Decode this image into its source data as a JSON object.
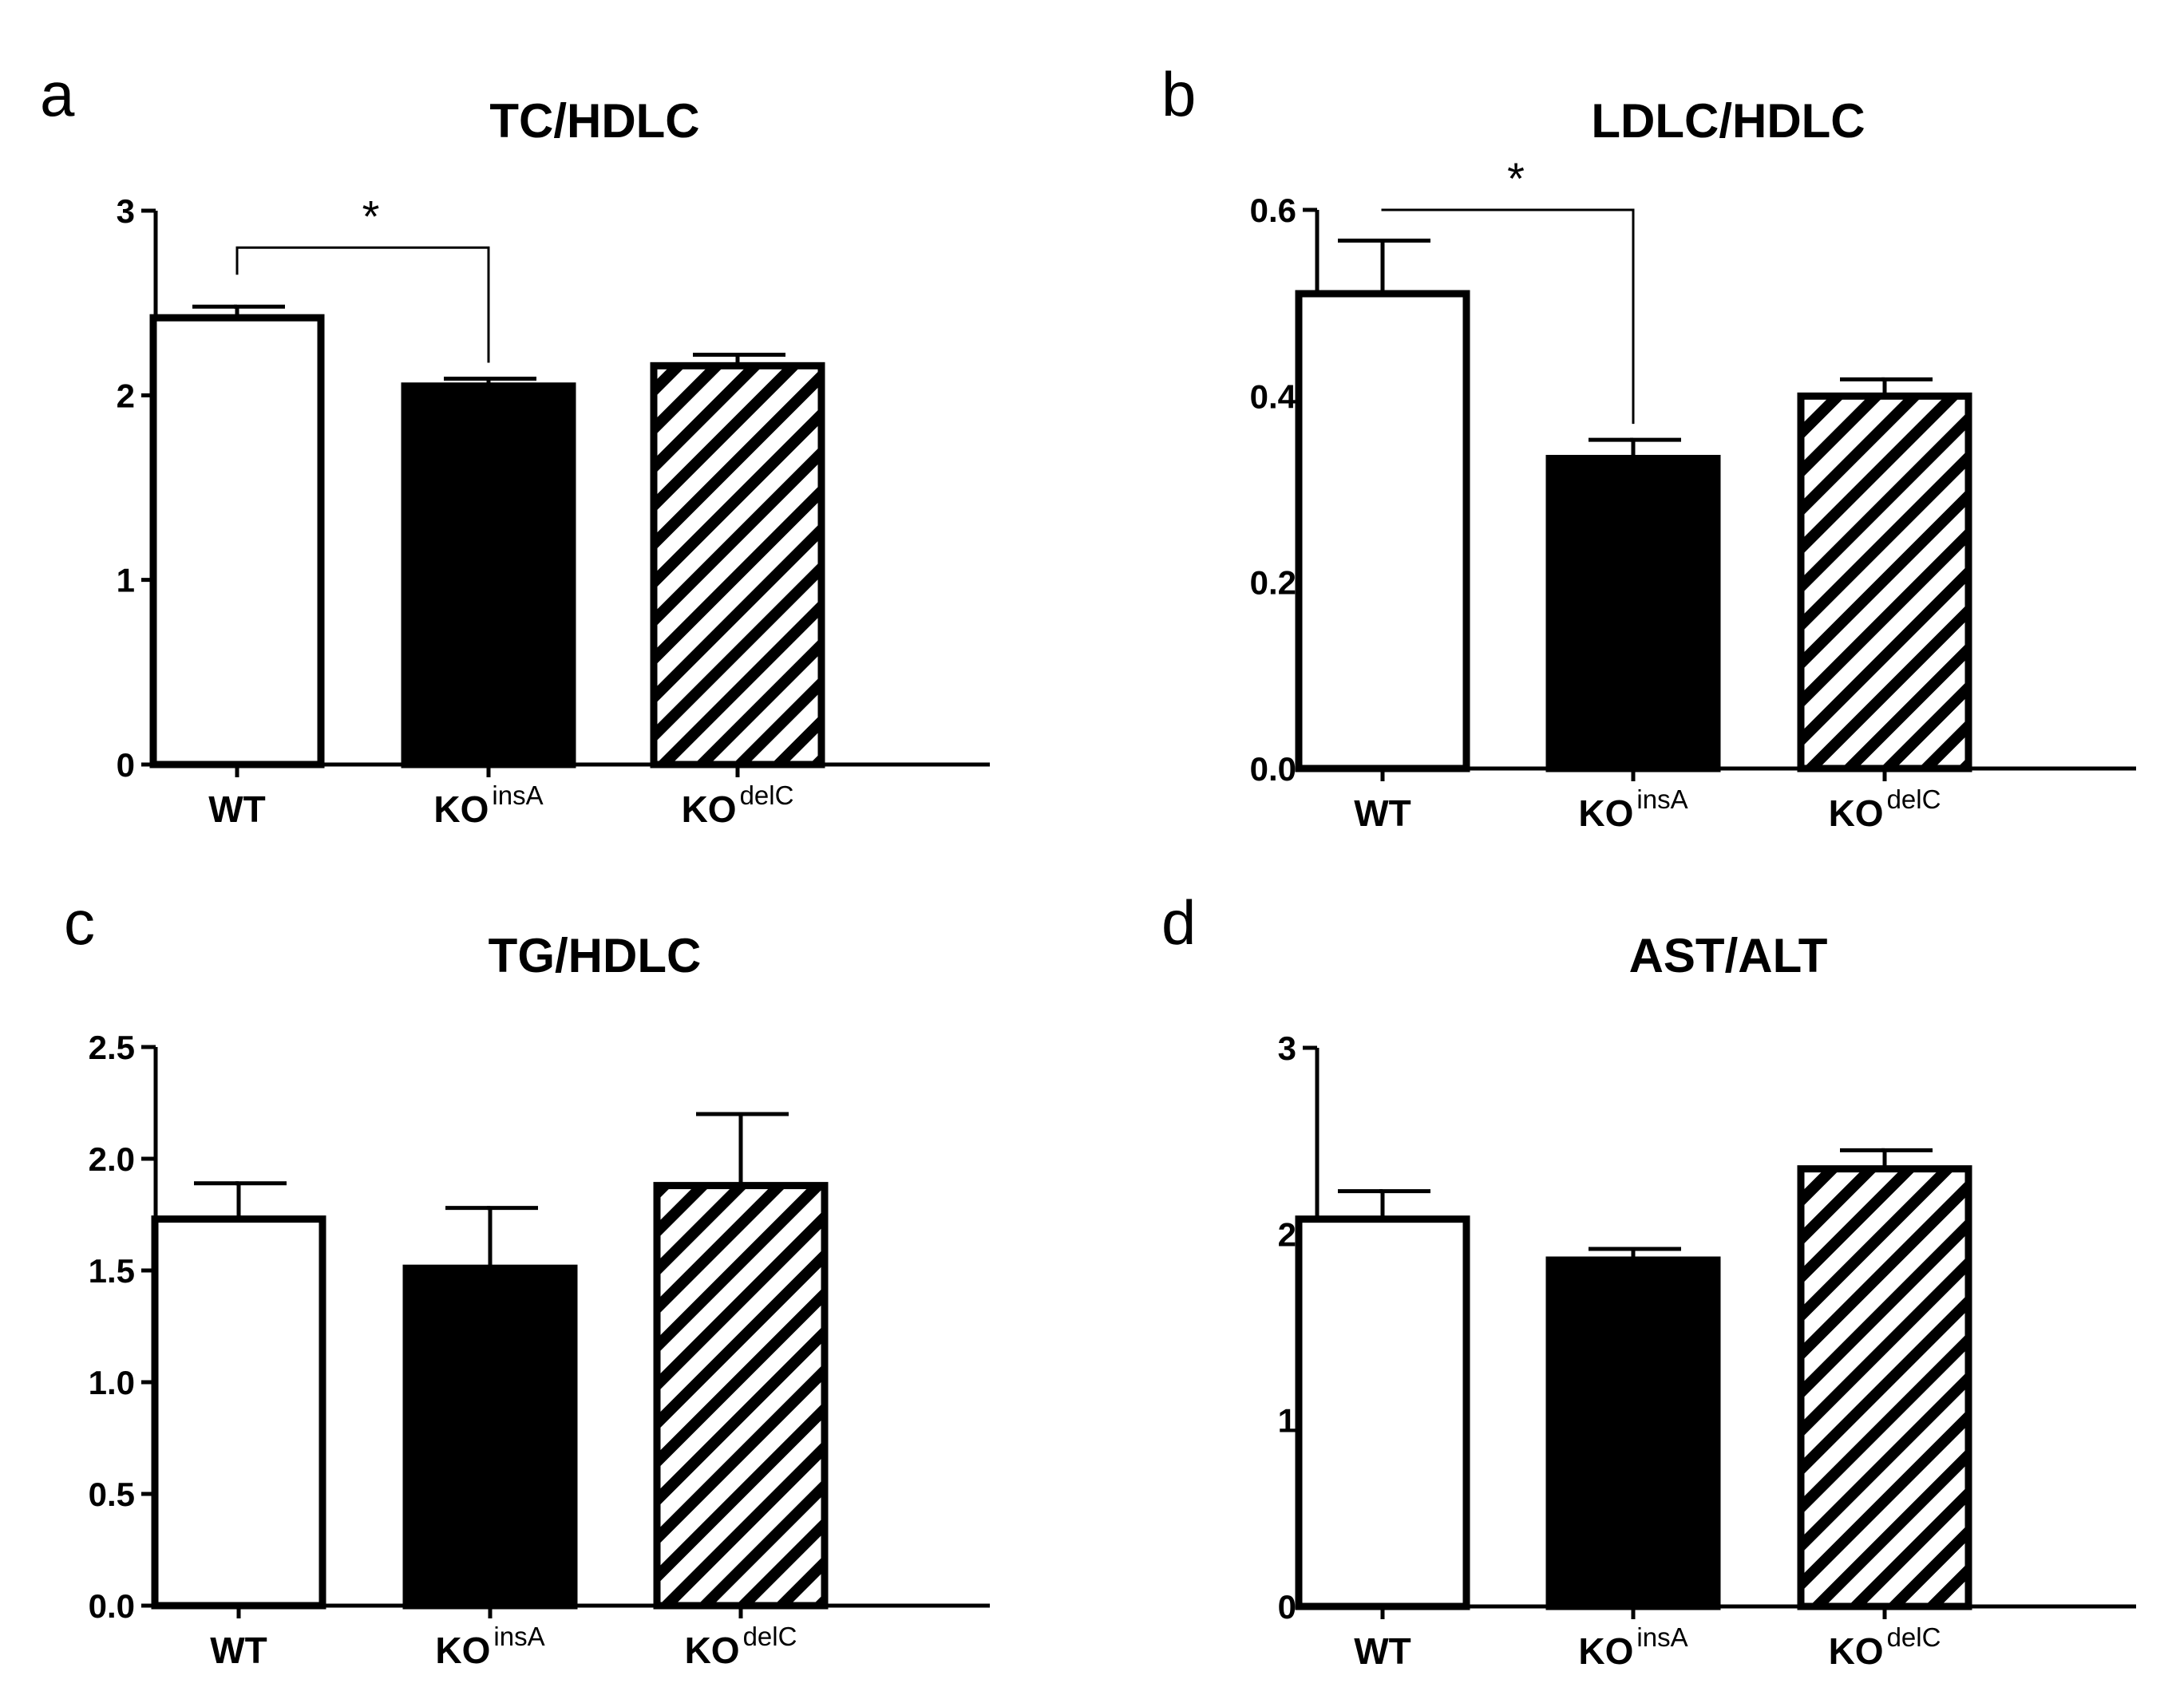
{
  "chart_data": [
    {
      "panel": "a",
      "type": "bar",
      "title": "TC/HDLC",
      "categories": [
        {
          "base": "WT",
          "sup": ""
        },
        {
          "base": "KO",
          "sup": "insA"
        },
        {
          "base": "KO",
          "sup": "delC"
        }
      ],
      "values": [
        2.42,
        2.05,
        2.16
      ],
      "errors": [
        0.06,
        0.04,
        0.06
      ],
      "fills": [
        "open",
        "solid",
        "hatched"
      ],
      "ylim": [
        0,
        3
      ],
      "yticks": [
        "0",
        "1",
        "2",
        "3"
      ],
      "significance": [
        {
          "from": 0,
          "to": 1,
          "label": "*",
          "level": 2.8
        }
      ]
    },
    {
      "panel": "b",
      "type": "bar",
      "title": "LDLC/HDLC",
      "categories": [
        {
          "base": "WT",
          "sup": ""
        },
        {
          "base": "KO",
          "sup": "insA"
        },
        {
          "base": "KO",
          "sup": "delC"
        }
      ],
      "values": [
        0.51,
        0.333,
        0.4
      ],
      "errors": [
        0.057,
        0.02,
        0.018
      ],
      "fills": [
        "open",
        "solid",
        "hatched"
      ],
      "ylim": [
        0,
        0.6
      ],
      "yticks": [
        "0.0",
        "0.2",
        "0.4",
        "0.6"
      ],
      "significance": [
        {
          "from": 0,
          "to": 1,
          "label": "*",
          "level": 0.6
        }
      ]
    },
    {
      "panel": "c",
      "type": "bar",
      "title": "TG/HDLC",
      "categories": [
        {
          "base": "WT",
          "sup": ""
        },
        {
          "base": "KO",
          "sup": "insA"
        },
        {
          "base": "KO",
          "sup": "delC"
        }
      ],
      "values": [
        1.73,
        1.51,
        1.88
      ],
      "errors": [
        0.16,
        0.27,
        0.32
      ],
      "fills": [
        "open",
        "solid",
        "hatched"
      ],
      "ylim": [
        0,
        2.5
      ],
      "yticks": [
        "0.0",
        "0.5",
        "1.0",
        "1.5",
        "2.0",
        "2.5"
      ],
      "significance": []
    },
    {
      "panel": "d",
      "type": "bar",
      "title": "AST/ALT",
      "categories": [
        {
          "base": "WT",
          "sup": ""
        },
        {
          "base": "KO",
          "sup": "insA"
        },
        {
          "base": "KO",
          "sup": "delC"
        }
      ],
      "values": [
        2.08,
        1.86,
        2.35
      ],
      "errors": [
        0.15,
        0.06,
        0.1
      ],
      "fills": [
        "open",
        "solid",
        "hatched"
      ],
      "ylim": [
        0,
        3
      ],
      "yticks": [
        "0",
        "1",
        "2",
        "3"
      ],
      "significance": []
    }
  ]
}
